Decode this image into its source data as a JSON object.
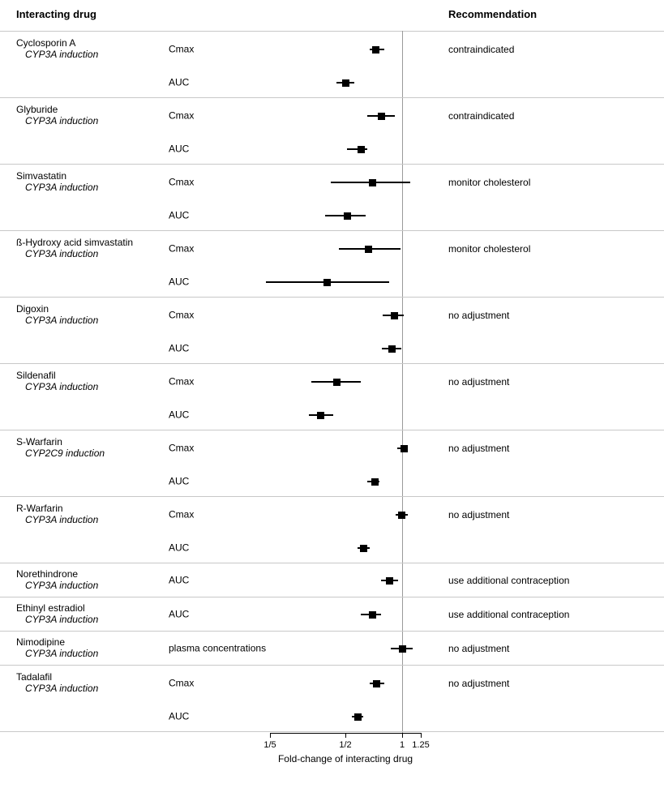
{
  "header": {
    "left": "Interacting drug",
    "right": "Recommendation"
  },
  "colors": {
    "marker": "#000000",
    "reference_line": "#9a9a9a",
    "divider": "#c8c8c8"
  },
  "chart_data": {
    "type": "forest",
    "xlabel": "Fold-change of interacting drug",
    "x_scale": "log",
    "x_range": [
      0.2,
      1.25
    ],
    "x_ticks": [
      {
        "label": "1/5",
        "value": 0.2
      },
      {
        "label": "1/2",
        "value": 0.5
      },
      {
        "label": "1",
        "value": 1
      },
      {
        "label": "1.25",
        "value": 1.25
      }
    ],
    "reference_line": 1,
    "grid": false,
    "sections": [
      {
        "drug": "Cyclosporin A",
        "mechanism": "CYP3A induction",
        "recommendation": "contraindicated",
        "rows": [
          {
            "measure": "Cmax",
            "value": 0.72,
            "ci": [
              0.67,
              0.8
            ]
          },
          {
            "measure": "AUC",
            "value": 0.5,
            "ci": [
              0.45,
              0.56
            ]
          }
        ]
      },
      {
        "drug": "Glyburide",
        "mechanism": "CYP3A induction",
        "recommendation": "contraindicated",
        "rows": [
          {
            "measure": "Cmax",
            "value": 0.77,
            "ci": [
              0.65,
              0.91
            ]
          },
          {
            "measure": "AUC",
            "value": 0.6,
            "ci": [
              0.51,
              0.65
            ]
          }
        ]
      },
      {
        "drug": "Simvastatin",
        "mechanism": "CYP3A induction",
        "recommendation": "monitor cholesterol",
        "rows": [
          {
            "measure": "Cmax",
            "value": 0.69,
            "ci": [
              0.42,
              1.1
            ]
          },
          {
            "measure": "AUC",
            "value": 0.51,
            "ci": [
              0.39,
              0.64
            ]
          }
        ]
      },
      {
        "drug": "ß-Hydroxy acid simvastatin",
        "mechanism": "CYP3A induction",
        "recommendation": "monitor cholesterol",
        "rows": [
          {
            "measure": "Cmax",
            "value": 0.66,
            "ci": [
              0.46,
              0.97
            ]
          },
          {
            "measure": "AUC",
            "value": 0.4,
            "ci": [
              0.19,
              0.85
            ]
          }
        ]
      },
      {
        "drug": "Digoxin",
        "mechanism": "CYP3A induction",
        "recommendation": "no adjustment",
        "rows": [
          {
            "measure": "Cmax",
            "value": 0.9,
            "ci": [
              0.79,
              1.02
            ]
          },
          {
            "measure": "AUC",
            "value": 0.88,
            "ci": [
              0.78,
              0.99
            ]
          }
        ]
      },
      {
        "drug": "Sildenafil",
        "mechanism": "CYP3A induction",
        "recommendation": "no adjustment",
        "rows": [
          {
            "measure": "Cmax",
            "value": 0.45,
            "ci": [
              0.33,
              0.6
            ]
          },
          {
            "measure": "AUC",
            "value": 0.37,
            "ci": [
              0.32,
              0.43
            ]
          }
        ]
      },
      {
        "drug": "S-Warfarin",
        "mechanism": "CYP2C9 induction",
        "recommendation": "no adjustment",
        "rows": [
          {
            "measure": "Cmax",
            "value": 1.02,
            "ci": [
              0.94,
              1.07
            ]
          },
          {
            "measure": "AUC",
            "value": 0.71,
            "ci": [
              0.65,
              0.75
            ]
          }
        ]
      },
      {
        "drug": "R-Warfarin",
        "mechanism": "CYP3A induction",
        "recommendation": "no adjustment",
        "rows": [
          {
            "measure": "Cmax",
            "value": 0.99,
            "ci": [
              0.92,
              1.07
            ]
          },
          {
            "measure": "AUC",
            "value": 0.62,
            "ci": [
              0.58,
              0.67
            ]
          }
        ]
      },
      {
        "drug": "Norethindrone",
        "mechanism": "CYP3A induction",
        "recommendation": "use additional contraception",
        "rows": [
          {
            "measure": "AUC",
            "value": 0.85,
            "ci": [
              0.77,
              0.95
            ]
          }
        ]
      },
      {
        "drug": "Ethinyl estradiol",
        "mechanism": "CYP3A induction",
        "recommendation": "use additional contraception",
        "rows": [
          {
            "measure": "AUC",
            "value": 0.69,
            "ci": [
              0.6,
              0.77
            ]
          }
        ]
      },
      {
        "drug": "Nimodipine",
        "mechanism": "CYP3A induction",
        "recommendation": "no adjustment",
        "rows": [
          {
            "measure": "plasma concentrations",
            "value": 1.0,
            "ci": [
              0.87,
              1.14
            ]
          }
        ]
      },
      {
        "drug": "Tadalafil",
        "mechanism": "CYP3A induction",
        "recommendation": "no adjustment",
        "rows": [
          {
            "measure": "Cmax",
            "value": 0.73,
            "ci": [
              0.67,
              0.8
            ]
          },
          {
            "measure": "AUC",
            "value": 0.58,
            "ci": [
              0.54,
              0.62
            ]
          }
        ]
      }
    ]
  }
}
